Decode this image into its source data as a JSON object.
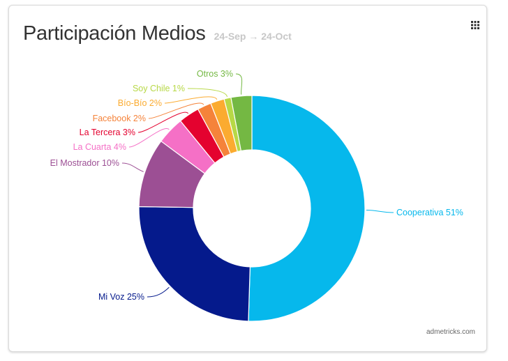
{
  "header": {
    "title": "Participación Medios",
    "date_range": "24-Sep → 24-Oct"
  },
  "menu_icon": "grid-icon",
  "footer": {
    "credit": "admetricks.com"
  },
  "chart_data": {
    "type": "pie",
    "donut": true,
    "slices": [
      {
        "label": "Cooperativa 51%",
        "value": 51,
        "color": "#06b8ec"
      },
      {
        "label": "Mi Voz 25%",
        "value": 25,
        "color": "#051a8c"
      },
      {
        "label": "El Mostrador 10%",
        "value": 10,
        "color": "#9c4f94"
      },
      {
        "label": "La Cuarta 4%",
        "value": 4,
        "color": "#f570c6"
      },
      {
        "label": "La Tercera 3%",
        "value": 3,
        "color": "#e4022f"
      },
      {
        "label": "Facebook 2%",
        "value": 2,
        "color": "#f5833a"
      },
      {
        "label": "Bío-Bío 2%",
        "value": 2,
        "color": "#fbab30"
      },
      {
        "label": "Soy Chile 1%",
        "value": 1,
        "color": "#b7d846"
      },
      {
        "label": "Otros 3%",
        "value": 3,
        "color": "#74b843"
      }
    ]
  }
}
